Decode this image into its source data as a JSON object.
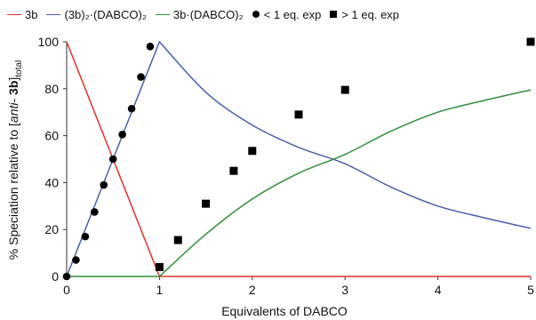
{
  "chart_data": {
    "type": "line",
    "title": "",
    "xlabel": "Equivalents of DABCO",
    "ylabel_parts": [
      "% Speciation relative  to [",
      "anti",
      "- ",
      "3b",
      "]",
      "total"
    ],
    "xlim": [
      0,
      5
    ],
    "ylim": [
      0,
      100
    ],
    "xticks": [
      0,
      1,
      2,
      3,
      4,
      5
    ],
    "yticks": [
      0,
      20,
      40,
      60,
      80,
      100
    ],
    "grid": false,
    "legend_position": "top",
    "series": [
      {
        "name": "3b",
        "legend_label": "3b",
        "kind": "line",
        "color": "#e0302a",
        "x": [
          0,
          1,
          5
        ],
        "y": [
          100,
          0,
          0
        ]
      },
      {
        "name": "(3b)2·(DABCO)2",
        "legend_label": "(3b)₂·(DABCO)₂",
        "kind": "line",
        "color": "#4a5fa8",
        "x": [
          0,
          1,
          1.5,
          2,
          2.5,
          3,
          3.5,
          4,
          4.5,
          5
        ],
        "y": [
          0,
          100,
          78.5,
          64.5,
          55,
          48,
          38,
          30,
          25,
          20.5
        ]
      },
      {
        "name": "3b·(DABCO)2",
        "legend_label": "3b·(DABCO)₂",
        "kind": "line",
        "color": "#2f8f3a",
        "x": [
          0,
          1,
          1.5,
          2,
          2.5,
          3,
          3.5,
          4,
          4.5,
          5
        ],
        "y": [
          0,
          0,
          18,
          33,
          44,
          52,
          62,
          70,
          75,
          79.5
        ]
      },
      {
        "name": "< 1 eq. exp",
        "legend_label": "< 1 eq. exp",
        "kind": "scatter",
        "marker": "circle",
        "color": "#000000",
        "x": [
          0,
          0.1,
          0.2,
          0.3,
          0.4,
          0.5,
          0.6,
          0.7,
          0.8,
          0.9
        ],
        "y": [
          0,
          7,
          17,
          27.5,
          39,
          50,
          60.5,
          71.5,
          85,
          98
        ]
      },
      {
        "name": "> 1 eq. exp",
        "legend_label": "> 1 eq. exp",
        "kind": "scatter",
        "marker": "square",
        "color": "#000000",
        "x": [
          1,
          1.2,
          1.5,
          1.8,
          2,
          2.5,
          3,
          5
        ],
        "y": [
          4,
          15.5,
          31,
          45,
          53.5,
          69,
          79.5,
          100
        ]
      }
    ]
  }
}
